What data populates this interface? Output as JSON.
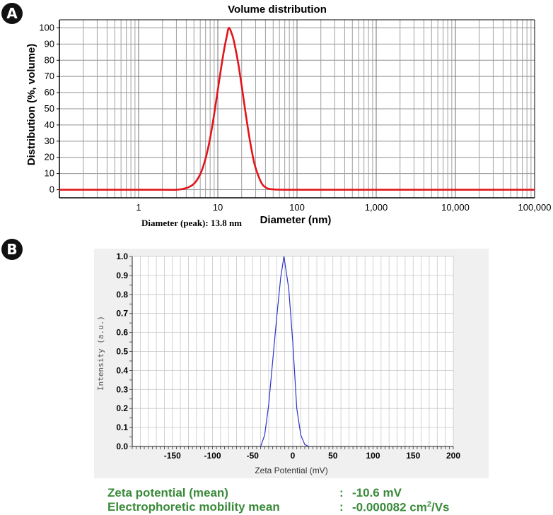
{
  "panels": {
    "a_label": "A",
    "b_label": "B"
  },
  "chart_data": [
    {
      "type": "line",
      "title": "Volume distribution",
      "xlabel": "Diameter (nm)",
      "ylabel": "Distribution (%, volume)",
      "x_scale": "log",
      "xlim": [
        0.1,
        100000
      ],
      "ylim": [
        -5,
        105
      ],
      "x_ticks": [
        1,
        10,
        100,
        1000,
        10000,
        100000
      ],
      "x_tick_labels": [
        "1",
        "10",
        "100",
        "1,000",
        "10,000",
        "100,000"
      ],
      "y_ticks": [
        0,
        10,
        20,
        30,
        40,
        50,
        60,
        70,
        80,
        90,
        100
      ],
      "annotation": "Diameter (peak): 13.8 nm",
      "grid": true,
      "color": "#e3141b",
      "series": [
        {
          "x": [
            0.1,
            2,
            3,
            4,
            5,
            6,
            7,
            8,
            9,
            10,
            11,
            12,
            13,
            13.8,
            15,
            16,
            18,
            20,
            22,
            25,
            28,
            30,
            35,
            40,
            50,
            100,
            1000,
            10000,
            100000
          ],
          "y": [
            0,
            0,
            0,
            1,
            3.7,
            9.6,
            19.2,
            31.9,
            46.8,
            61.7,
            75.1,
            86.4,
            95.0,
            100,
            96.4,
            91.6,
            78.8,
            64.3,
            50.2,
            32.5,
            19.4,
            13.5,
            4.9,
            1.5,
            0.2,
            0,
            0,
            0,
            0
          ]
        }
      ]
    },
    {
      "type": "line",
      "xlabel": "Zeta Potential (mV)",
      "ylabel": "Intensity (a.u.)",
      "xlim": [
        -200,
        200
      ],
      "ylim": [
        0,
        1.0
      ],
      "x_ticks": [
        -150,
        -100,
        -50,
        0,
        50,
        100,
        150,
        200
      ],
      "y_ticks": [
        0.0,
        0.1,
        0.2,
        0.3,
        0.4,
        0.5,
        0.6,
        0.7,
        0.8,
        0.9,
        1.0
      ],
      "y_tick_labels": [
        "0.0",
        "0.1",
        "0.2",
        "0.3",
        "0.4",
        "0.5",
        "0.6",
        "0.7",
        "0.8",
        "0.9",
        "1.0"
      ],
      "grid": true,
      "color": "#2b34c8",
      "series": [
        {
          "x": [
            -40,
            -35,
            -30,
            -25,
            -20,
            -15,
            -11,
            -5,
            0,
            5,
            10,
            15,
            20
          ],
          "y": [
            0,
            0.06,
            0.22,
            0.45,
            0.68,
            0.89,
            1.0,
            0.83,
            0.55,
            0.2,
            0.06,
            0.01,
            0
          ]
        }
      ]
    }
  ],
  "zeta_info": {
    "label1": "Zeta potential (mean)",
    "sep1": ":",
    "value1": "-10.6 mV",
    "label2": "Electrophoretic mobility mean",
    "sep2": ":",
    "value2_main": "-0.000082 cm",
    "value2_sup": "2",
    "value2_tail": "/Vs"
  },
  "colors": {
    "panel_b_background": "#f0f0f0",
    "zeta_text": "#3a8a3a"
  }
}
